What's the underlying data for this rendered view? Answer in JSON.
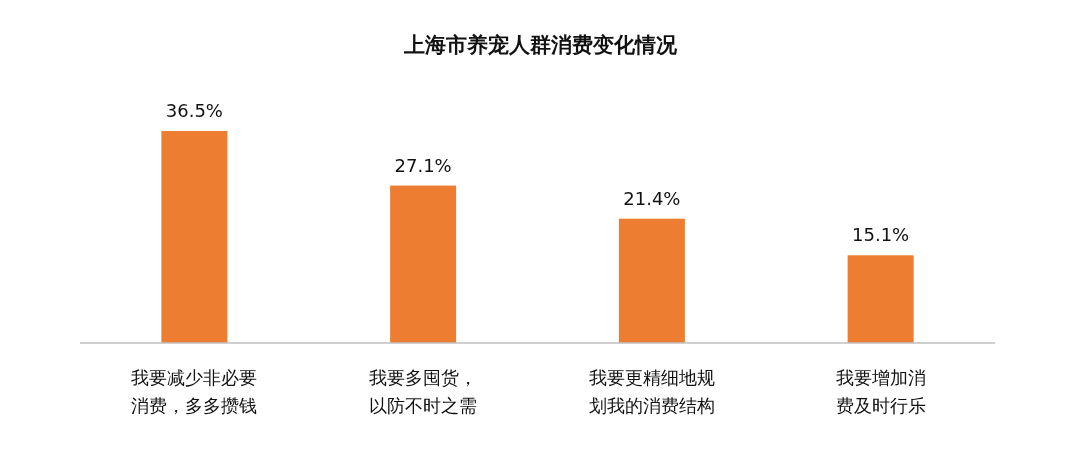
{
  "chart_data": {
    "type": "bar",
    "title": "上海市养宠人群消费变化情况",
    "categories": [
      "我要减少非必要消费，多多攒钱",
      "我要多囤货，以防不时之需",
      "我要更精细地规划我的消费结构",
      "我要增加消费及时行乐"
    ],
    "values": [
      36.5,
      27.1,
      21.4,
      15.1
    ],
    "value_labels": [
      "36.5%",
      "27.1%",
      "21.4%",
      "15.1%"
    ],
    "color": "#ed7d31"
  }
}
